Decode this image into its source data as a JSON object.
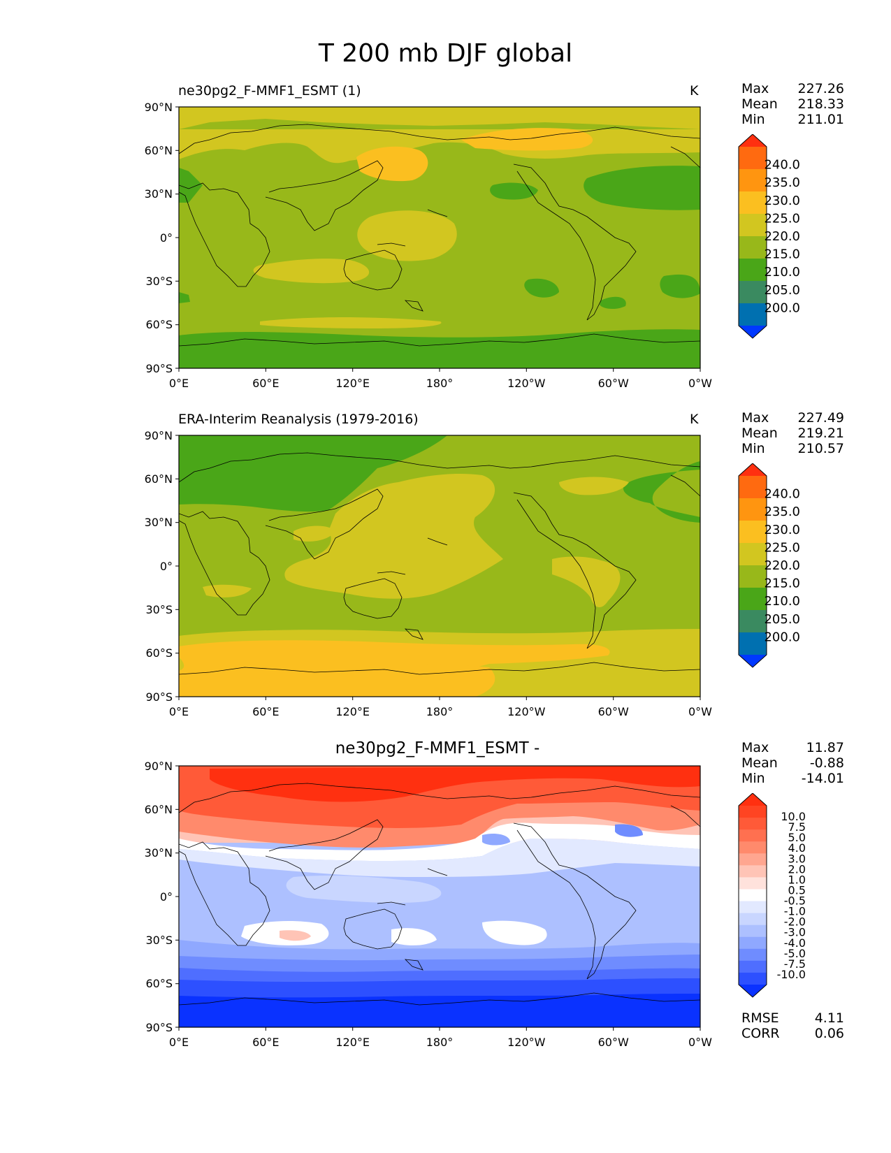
{
  "title": "T 200 mb DJF global",
  "lat_ticks": [
    "90°N",
    "60°N",
    "30°N",
    "0°",
    "30°S",
    "60°S",
    "90°S"
  ],
  "lon_ticks": [
    "0°E",
    "60°E",
    "120°E",
    "180°",
    "120°W",
    "60°W",
    "0°W"
  ],
  "panels": [
    {
      "id": "test",
      "title": "ne30pg2_F-MMF1_ESMT (1)",
      "units": "K",
      "stats": {
        "max_label": "Max",
        "max": "227.26",
        "mean_label": "Mean",
        "mean": "218.33",
        "min_label": "Min",
        "min": "211.01"
      },
      "colorbar": {
        "labels": [
          "240.0",
          "235.0",
          "230.0",
          "225.0",
          "220.0",
          "215.0",
          "210.0",
          "205.0",
          "200.0"
        ],
        "colors": [
          "#ff3010",
          "#ff6a10",
          "#ff9510",
          "#fbbf20",
          "#d2c620",
          "#98b81a",
          "#4aa618",
          "#3a8a60",
          "#0070b0",
          "#0038ff"
        ]
      }
    },
    {
      "id": "reference",
      "title": "ERA-Interim Reanalysis (1979-2016)",
      "units": "K",
      "stats": {
        "max_label": "Max",
        "max": "227.49",
        "mean_label": "Mean",
        "mean": "219.21",
        "min_label": "Min",
        "min": "210.57"
      },
      "colorbar": {
        "labels": [
          "240.0",
          "235.0",
          "230.0",
          "225.0",
          "220.0",
          "215.0",
          "210.0",
          "205.0",
          "200.0"
        ],
        "colors": [
          "#ff3010",
          "#ff6a10",
          "#ff9510",
          "#fbbf20",
          "#d2c620",
          "#98b81a",
          "#4aa618",
          "#3a8a60",
          "#0070b0",
          "#0038ff"
        ]
      }
    },
    {
      "id": "diff",
      "title": "ne30pg2_F-MMF1_ESMT -",
      "units": "",
      "stats": {
        "max_label": "Max",
        "max": "11.87",
        "mean_label": "Mean",
        "mean": "-0.88",
        "min_label": "Min",
        "min": "-14.01"
      },
      "colorbar": {
        "labels": [
          "10.0",
          "7.5",
          "5.0",
          "4.0",
          "3.0",
          "2.0",
          "1.0",
          "0.5",
          "-0.5",
          "-1.0",
          "-2.0",
          "-3.0",
          "-4.0",
          "-5.0",
          "-7.5",
          "-10.0"
        ],
        "colors": [
          "#ff3010",
          "#ff4422",
          "#ff5a38",
          "#ff7050",
          "#ff8a6c",
          "#ffa690",
          "#ffc4b6",
          "#ffe2dc",
          "#ffffff",
          "#e2e9ff",
          "#c9d6ff",
          "#adc0ff",
          "#8fa8ff",
          "#6f8cff",
          "#4f6eff",
          "#2d50ff",
          "#0a32ff"
        ]
      },
      "metrics": {
        "rmse_label": "RMSE",
        "rmse": "4.11",
        "corr_label": "CORR",
        "corr": "0.06"
      }
    }
  ]
}
